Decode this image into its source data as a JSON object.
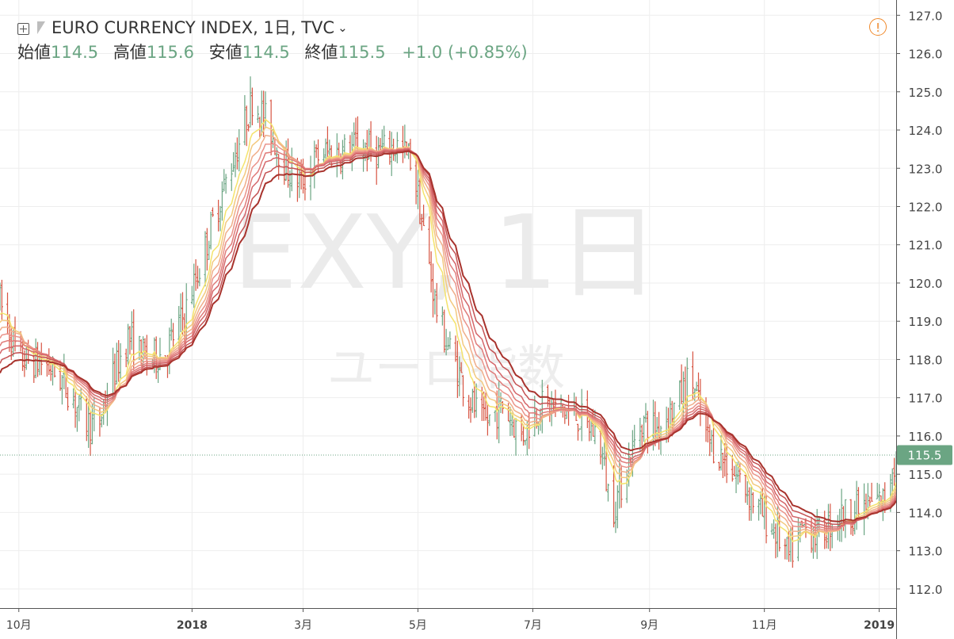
{
  "header": {
    "title": "EURO CURRENCY INDEX, 1日, TVC",
    "ohlc": {
      "open_label": "始値",
      "open": "114.5",
      "high_label": "高値",
      "high": "115.6",
      "low_label": "安値",
      "low": "114.5",
      "close_label": "終値",
      "close": "115.5",
      "change": "+1.0",
      "change_pct": "(+0.85%)"
    }
  },
  "watermark": {
    "symbol": "EXY, 1日",
    "subtitle": "ユーロ指数"
  },
  "colors": {
    "up_bar": "#6ba583",
    "down_bar": "#d75442",
    "ribbon": [
      "#f4e36c",
      "#f3c97f",
      "#f0ae8a",
      "#ea938a",
      "#e07c7a",
      "#d4666a",
      "#c45253",
      "#a8332d"
    ],
    "price_line": "#6ba583",
    "grid": "#eeeeee",
    "warning": "#f0892b"
  },
  "chart_data": {
    "type": "ohlc_bar",
    "y_axis": {
      "min": 111.5,
      "max": 127.4,
      "ticks": [
        112.0,
        113.0,
        114.0,
        115.0,
        116.0,
        117.0,
        118.0,
        119.0,
        120.0,
        121.0,
        122.0,
        123.0,
        124.0,
        125.0,
        126.0,
        127.0
      ],
      "tick_labels": [
        "112.0",
        "113.0",
        "114.0",
        "115.0",
        "116.0",
        "117.0",
        "118.0",
        "119.0",
        "120.0",
        "121.0",
        "122.0",
        "123.0",
        "124.0",
        "125.0",
        "126.0",
        "127.0"
      ]
    },
    "x_axis": {
      "start": "2017-09-21",
      "end": "2019-01-10",
      "ticks": [
        {
          "date": "2017-10-01",
          "label": "10月",
          "bold": false
        },
        {
          "date": "2018-01-01",
          "label": "2018",
          "bold": true
        },
        {
          "date": "2018-03-01",
          "label": "3月",
          "bold": false
        },
        {
          "date": "2018-05-01",
          "label": "5月",
          "bold": false
        },
        {
          "date": "2018-07-01",
          "label": "7月",
          "bold": false
        },
        {
          "date": "2018-09-01",
          "label": "9月",
          "bold": false
        },
        {
          "date": "2018-11-01",
          "label": "11月",
          "bold": false
        },
        {
          "date": "2019-01-01",
          "label": "2019",
          "bold": true
        }
      ]
    },
    "last_price": 115.5,
    "last_price_label": "115.5",
    "price_path": [
      [
        "2017-09-21",
        119.5
      ],
      [
        "2017-10-01",
        118.0
      ],
      [
        "2017-10-15",
        117.9
      ],
      [
        "2017-10-25",
        117.4
      ],
      [
        "2017-11-05",
        116.4
      ],
      [
        "2017-11-12",
        116.2
      ],
      [
        "2017-11-18",
        117.3
      ],
      [
        "2017-11-28",
        118.6
      ],
      [
        "2017-12-08",
        118.0
      ],
      [
        "2017-12-18",
        118.2
      ],
      [
        "2017-12-28",
        119.2
      ],
      [
        "2018-01-05",
        120.4
      ],
      [
        "2018-01-12",
        121.6
      ],
      [
        "2018-01-20",
        122.8
      ],
      [
        "2018-01-28",
        124.0
      ],
      [
        "2018-02-02",
        124.8
      ],
      [
        "2018-02-10",
        124.2
      ],
      [
        "2018-02-20",
        123.0
      ],
      [
        "2018-02-28",
        122.6
      ],
      [
        "2018-03-10",
        123.4
      ],
      [
        "2018-03-20",
        123.4
      ],
      [
        "2018-03-30",
        123.6
      ],
      [
        "2018-04-10",
        123.4
      ],
      [
        "2018-04-20",
        123.6
      ],
      [
        "2018-04-28",
        123.2
      ],
      [
        "2018-05-05",
        121.0
      ],
      [
        "2018-05-12",
        119.0
      ],
      [
        "2018-05-20",
        118.0
      ],
      [
        "2018-05-28",
        117.0
      ],
      [
        "2018-06-05",
        116.3
      ],
      [
        "2018-06-15",
        116.8
      ],
      [
        "2018-06-25",
        116.0
      ],
      [
        "2018-07-05",
        116.8
      ],
      [
        "2018-07-15",
        116.7
      ],
      [
        "2018-07-25",
        116.5
      ],
      [
        "2018-08-05",
        116.0
      ],
      [
        "2018-08-12",
        114.0
      ],
      [
        "2018-08-20",
        115.2
      ],
      [
        "2018-08-28",
        116.4
      ],
      [
        "2018-09-05",
        116.2
      ],
      [
        "2018-09-15",
        116.8
      ],
      [
        "2018-09-23",
        117.6
      ],
      [
        "2018-10-01",
        116.0
      ],
      [
        "2018-10-10",
        115.4
      ],
      [
        "2018-10-20",
        114.8
      ],
      [
        "2018-10-30",
        114.0
      ],
      [
        "2018-11-08",
        113.4
      ],
      [
        "2018-11-14",
        112.8
      ],
      [
        "2018-11-22",
        113.6
      ],
      [
        "2018-11-30",
        113.4
      ],
      [
        "2018-12-08",
        113.8
      ],
      [
        "2018-12-16",
        114.0
      ],
      [
        "2018-12-24",
        114.1
      ],
      [
        "2018-12-31",
        114.3
      ],
      [
        "2019-01-04",
        114.3
      ],
      [
        "2019-01-08",
        115.3
      ]
    ],
    "ribbon_start_values": [
      119.0,
      118.8,
      118.6,
      118.4,
      118.2,
      118.0,
      117.75,
      117.5
    ],
    "ribbon_smoothing": [
      9,
      12,
      15,
      18,
      21,
      24,
      28,
      32
    ]
  }
}
